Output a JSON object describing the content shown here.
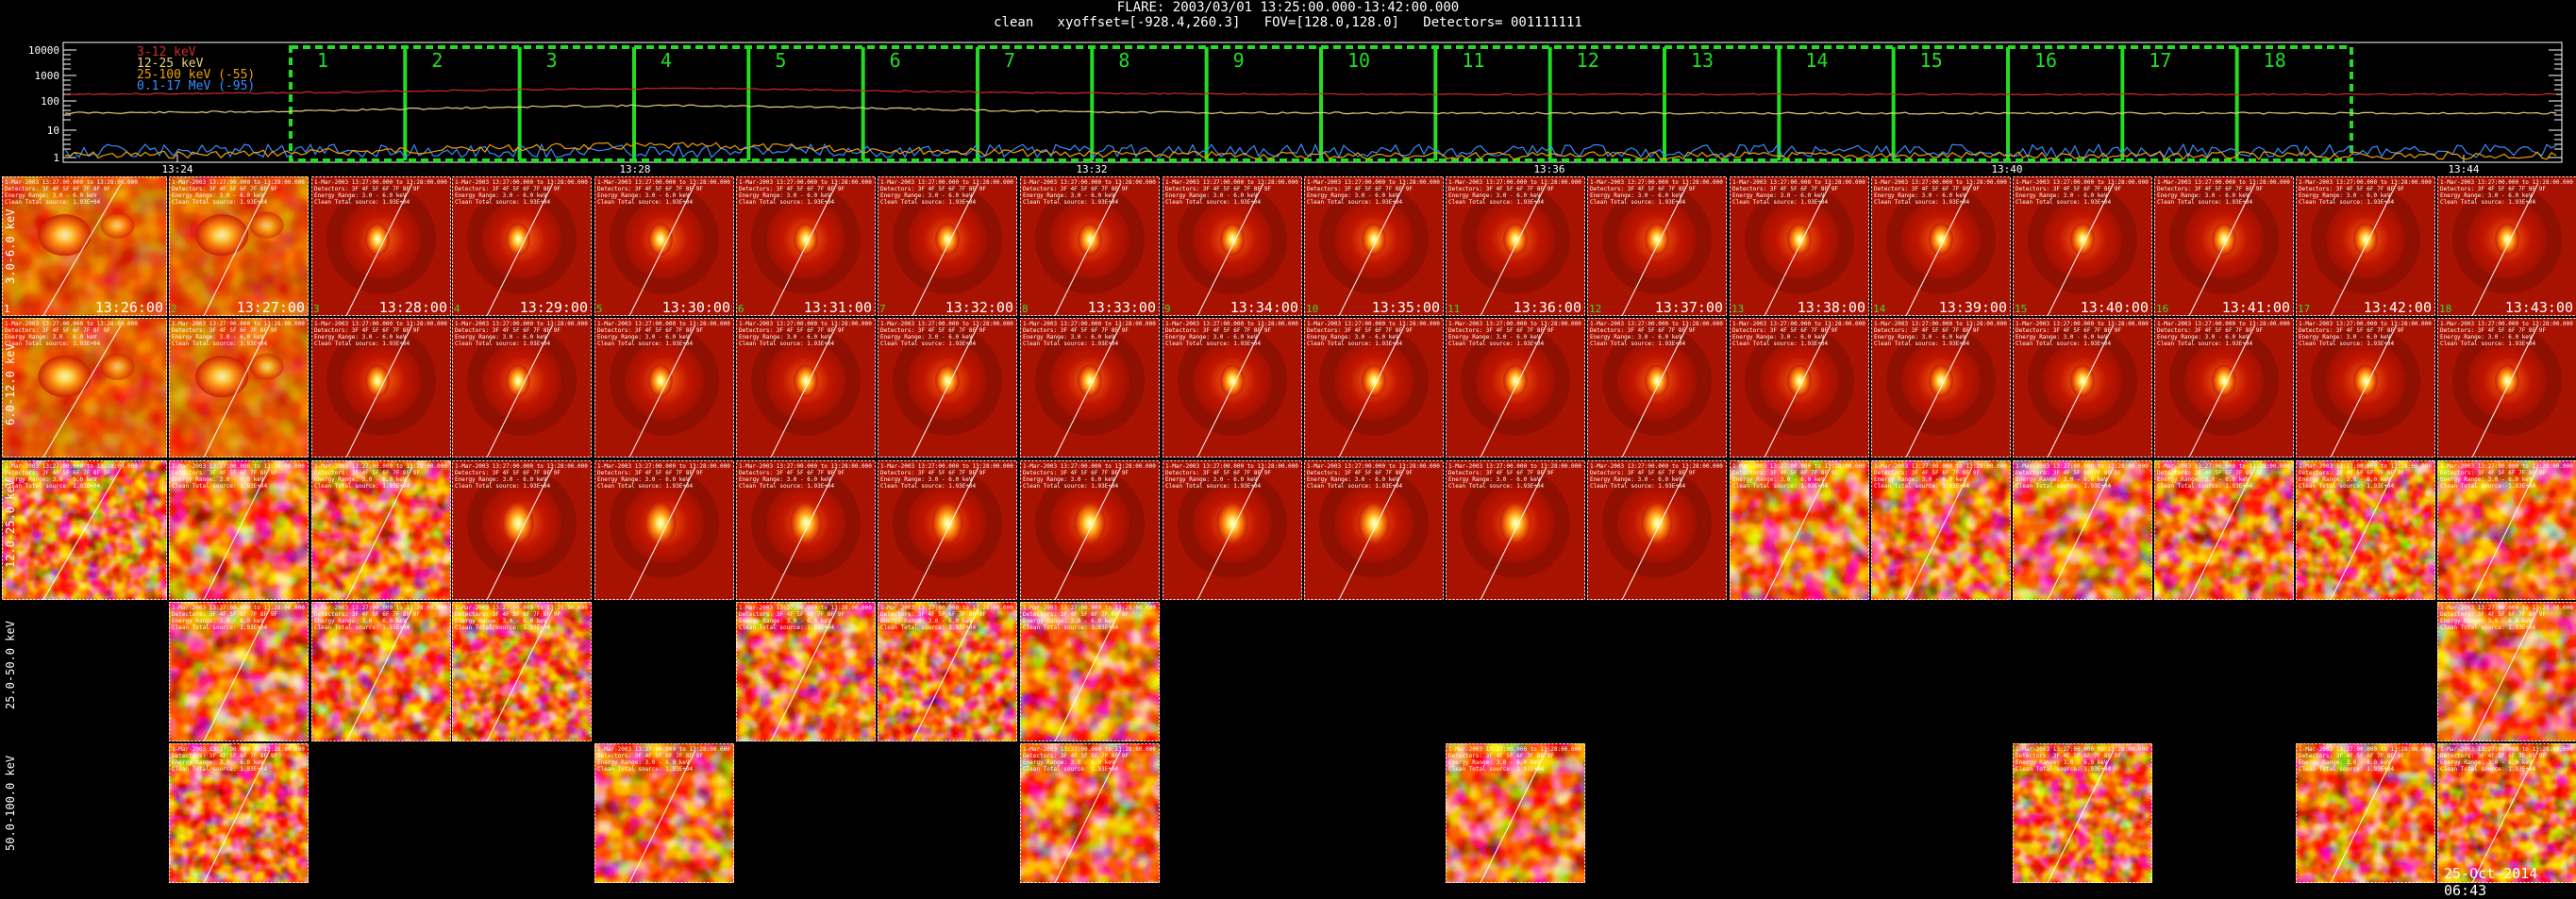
{
  "header": {
    "line1": "FLARE: 2003/03/01 13:25:00.000-13:42:00.000",
    "line2": "clean   xyoffset=[-928.4,260.3]   FOV=[128.0,128.0]   Detectors= 001111111"
  },
  "lightcurve": {
    "legend": [
      {
        "label": "3-12 keV",
        "color": "#d22a2a"
      },
      {
        "label": "12-25 keV",
        "color": "#e8d080"
      },
      {
        "label": "25-100 keV (-55)",
        "color": "#f0a000"
      },
      {
        "label": "0.1-17 MeV (-95)",
        "color": "#3a8cff"
      }
    ],
    "y_ticks": [
      "10000",
      "1000",
      "100",
      "10",
      "1"
    ],
    "x_ticks": [
      "13:24",
      "13:28",
      "13:32",
      "13:36",
      "13:40",
      "13:44"
    ],
    "intervals": [
      "1",
      "2",
      "3",
      "4",
      "5",
      "6",
      "7",
      "8",
      "9",
      "10",
      "11",
      "12",
      "13",
      "14",
      "15",
      "16",
      "17",
      "18"
    ],
    "interval_color": "#22dd22"
  },
  "row_labels": [
    "3.0-6.0 keV",
    "6.0-12.0 keV",
    "12.0-25.0 keV",
    "25.0-50.0 keV",
    "50.0-100.0 keV"
  ],
  "image_times": [
    "13:26:00",
    "13:27:00",
    "13:28:00",
    "13:29:00",
    "13:30:00",
    "13:31:00",
    "13:32:00",
    "13:33:00",
    "13:34:00",
    "13:35:00",
    "13:36:00",
    "13:37:00",
    "13:38:00",
    "13:39:00",
    "13:40:00",
    "13:41:00",
    "13:42:00",
    "13:43:00"
  ],
  "present": {
    "row4": [
      2,
      3,
      4,
      6,
      7,
      8,
      18
    ],
    "row5": [
      2,
      5,
      8,
      11,
      15,
      17,
      18
    ]
  },
  "tile_text": {
    "line1": "1-Mar-2003 13:27:00.000 to 13:28:00.000",
    "line2": "Detectors: 3F 4F 5F 6F 7F 8F 9F",
    "line3": "Energy Range: 3.0 - 6.0 keV",
    "line4": "Clean    Total source: 1.93E+04"
  },
  "timestamp": "25-Oct-2014 06:43"
}
